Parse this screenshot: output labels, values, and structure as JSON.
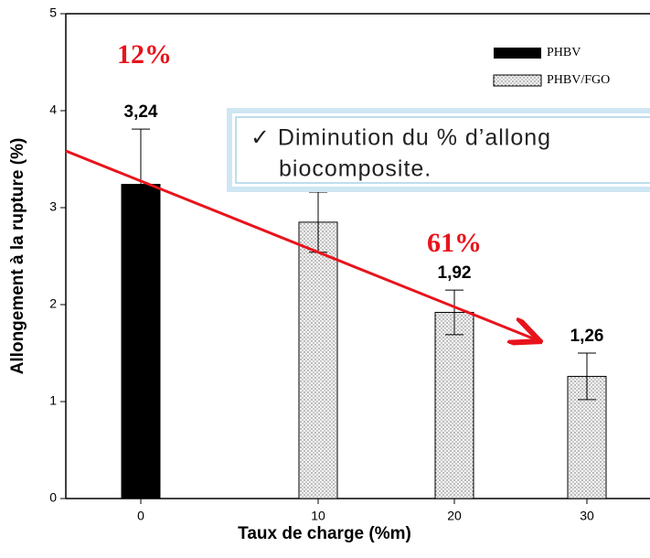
{
  "chart_data": {
    "type": "bar",
    "y_label": "Allongement à la rupture (%)",
    "x_label": "Taux de charge (%m)",
    "categories": [
      "0",
      "10",
      "20",
      "30"
    ],
    "series": [
      {
        "name": "PHBV",
        "color": "#000000",
        "values": [
          3.24,
          null,
          null,
          null
        ],
        "errors": [
          0.57,
          null,
          null,
          null
        ],
        "value_labels": [
          "3,24",
          null,
          null,
          null
        ]
      },
      {
        "name": "PHBV/FGO",
        "color": "#f0f0f0",
        "values": [
          null,
          2.85,
          1.92,
          1.26
        ],
        "errors": [
          null,
          0.31,
          0.23,
          0.24
        ],
        "value_labels": [
          null,
          null,
          "1,92",
          "1,26"
        ]
      }
    ],
    "ylim": [
      0,
      5
    ],
    "yticks": [
      0,
      1,
      2,
      3,
      4,
      5
    ],
    "annotations": [
      "12%",
      "61%"
    ],
    "callout": [
      "✓ Diminution du % d’allong",
      "biocomposite."
    ]
  }
}
